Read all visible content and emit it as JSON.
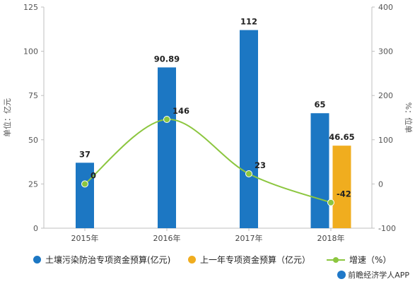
{
  "chart_data": {
    "type": "bar",
    "categories": [
      "2015年",
      "2016年",
      "2017年",
      "2018年"
    ],
    "y_left": {
      "label": "单位：亿元",
      "ticks": [
        0,
        25,
        50,
        75,
        100,
        125
      ],
      "range": [
        0,
        125
      ]
    },
    "y_right": {
      "label": "%：位单",
      "ticks": [
        -100,
        0,
        100,
        200,
        300,
        400
      ],
      "range": [
        -100,
        400
      ]
    },
    "series": [
      {
        "name": "土壤污染防治专项资金预算(亿元)",
        "kind": "bar",
        "axis": "left",
        "color": "#1c77c3",
        "values": [
          37,
          90.89,
          112,
          65
        ],
        "labels": [
          "37",
          "90.89",
          "112",
          "65"
        ]
      },
      {
        "name": "上一年专项资金预算（亿元）",
        "kind": "bar",
        "axis": "left",
        "color": "#f0ad1f",
        "values": [
          null,
          null,
          null,
          46.65
        ],
        "labels": [
          "",
          "",
          "",
          "46.65"
        ]
      },
      {
        "name": "增速（%）",
        "kind": "line",
        "axis": "right",
        "color": "#8cc63f",
        "values": [
          0,
          146,
          23,
          -42
        ],
        "labels": [
          "0",
          "146",
          "23",
          "-42"
        ]
      }
    ],
    "grid": false,
    "legend_position": "bottom"
  },
  "source": "前瞻经济学人APP"
}
